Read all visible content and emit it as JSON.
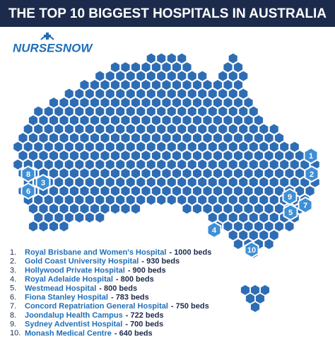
{
  "title": "THE TOP 10 BIGGEST HOSPITALS IN AUSTRALIA",
  "logo": "NURSESNOW",
  "hospitals": [
    {
      "rank": "1.",
      "name": "Royal Brisbane and Women's Hospital",
      "beds": "- 1000 beds",
      "marker": "1"
    },
    {
      "rank": "2.",
      "name": "Gold Coast University Hospital",
      "beds": "- 930 beds",
      "marker": "2"
    },
    {
      "rank": "3.",
      "name": "Hollywood Private Hospital",
      "beds": "- 900 beds",
      "marker": "3"
    },
    {
      "rank": "4.",
      "name": "Royal Adelaide Hospital",
      "beds": "- 800 beds",
      "marker": "4"
    },
    {
      "rank": "5.",
      "name": "Westmead Hospital",
      "beds": "- 800 beds",
      "marker": "5"
    },
    {
      "rank": "6.",
      "name": "Fiona Stanley Hospital",
      "beds": "- 783 beds",
      "marker": "6"
    },
    {
      "rank": "7.",
      "name": "Concord Repatriation General Hospital",
      "beds": "- 750 beds",
      "marker": "7"
    },
    {
      "rank": "8.",
      "name": "Joondalup Health Campus",
      "beds": "- 722 beds",
      "marker": "8"
    },
    {
      "rank": "9.",
      "name": "Sydney Adventist Hospital",
      "beds": "- 700 beds",
      "marker": "9"
    },
    {
      "rank": "10.",
      "name": "Monash Medical Centre",
      "beds": "- 640 beds",
      "marker": "10"
    }
  ]
}
